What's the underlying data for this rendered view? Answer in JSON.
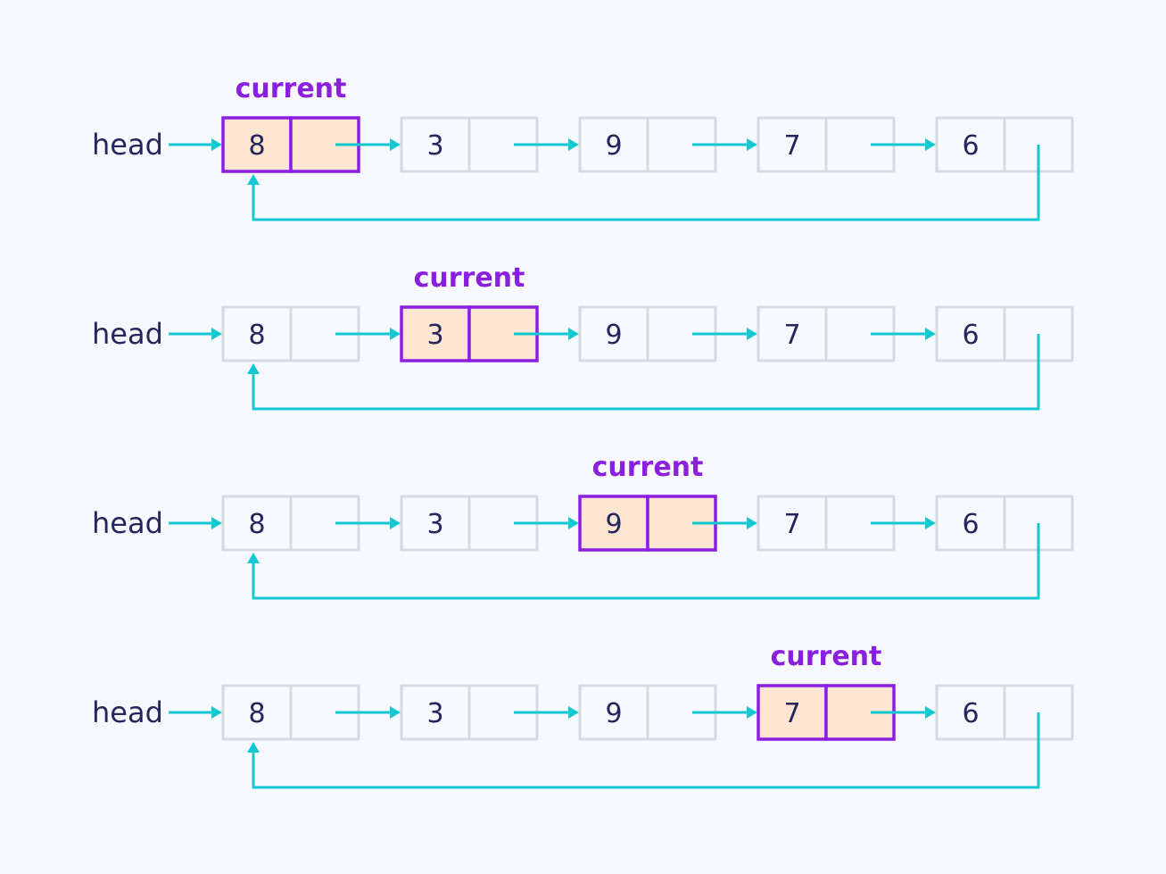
{
  "head_label": "head",
  "current_label": "current",
  "nodes": [
    "8",
    "3",
    "9",
    "7",
    "6"
  ],
  "rows": [
    {
      "current_index": 0
    },
    {
      "current_index": 1
    },
    {
      "current_index": 2
    },
    {
      "current_index": 3
    }
  ],
  "colors": {
    "background": "#f8f9fe",
    "text": "#25265e",
    "accent": "#8a1fe0",
    "highlight_fill": "#ffe6d2",
    "cell_border": "#d3dae3",
    "arrow": "#12c8d2"
  }
}
